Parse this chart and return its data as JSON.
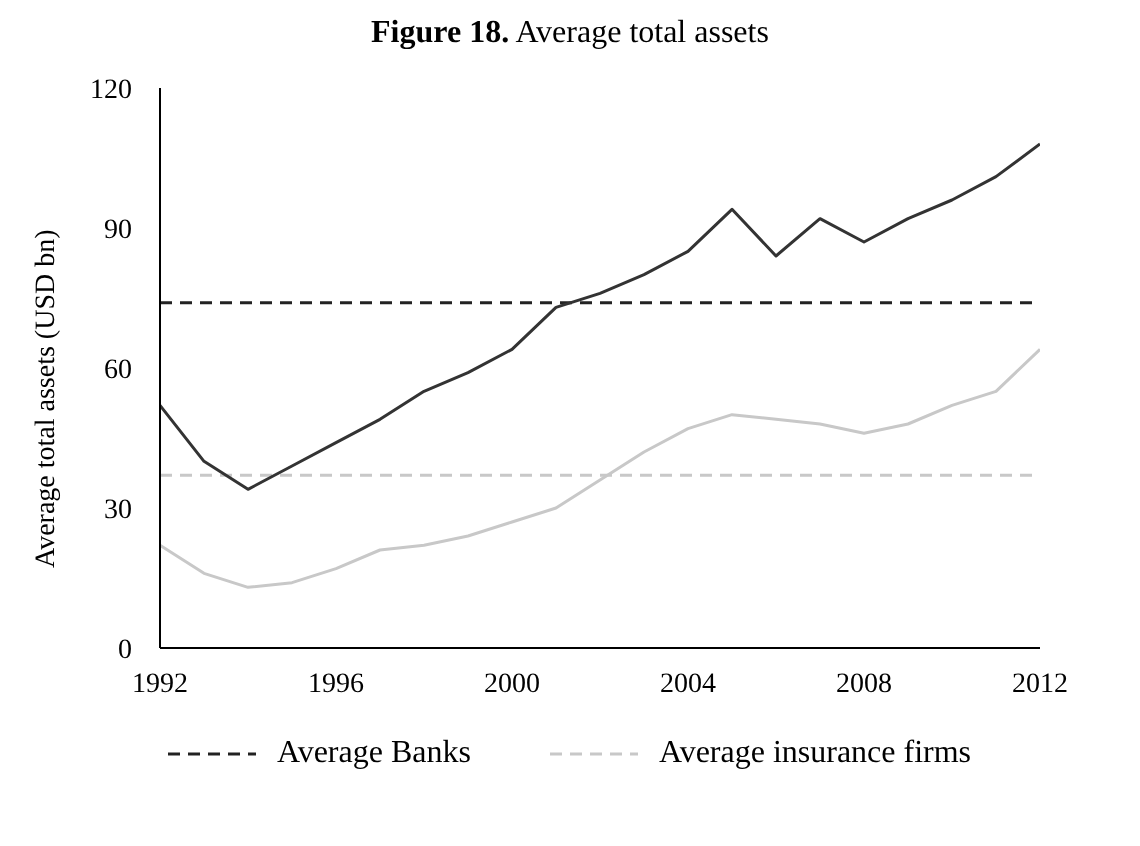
{
  "chart_data": {
    "type": "line",
    "title": "Figure 18. Average total assets",
    "ylabel": "Average total assets (USD bn)",
    "x": [
      1992,
      1993,
      1994,
      1995,
      1996,
      1997,
      1998,
      1999,
      2000,
      2001,
      2002,
      2003,
      2004,
      2005,
      2006,
      2007,
      2008,
      2009,
      2010,
      2011,
      2012
    ],
    "series": [
      {
        "color": "#333333",
        "values": [
          52,
          40,
          34,
          39,
          44,
          49,
          55,
          59,
          64,
          73,
          76,
          80,
          85,
          94,
          84,
          92,
          87,
          92,
          96,
          101,
          108
        ]
      },
      {
        "color": "#c8c8c8",
        "values": [
          22,
          16,
          13,
          14,
          17,
          21,
          22,
          24,
          27,
          30,
          36,
          42,
          47,
          50,
          49,
          48,
          46,
          48,
          52,
          55,
          64
        ]
      }
    ],
    "xlim": [
      1992,
      2012
    ],
    "xticks": [
      1992,
      1996,
      2000,
      2004,
      2008,
      2012
    ],
    "ylim": [
      0,
      120
    ],
    "yticks": [
      0,
      30,
      60,
      90,
      120
    ],
    "ref_lines": [
      {
        "axis": "y",
        "value": 74,
        "label": "Average Banks",
        "color": "#222222",
        "line_style": "dashed"
      },
      {
        "axis": "y",
        "value": 37,
        "label": "Average insurance firms",
        "color": "#c8c8c8",
        "line_style": "dashed"
      }
    ],
    "grid": false,
    "legend": "bottom",
    "marker": "none",
    "line_style": "solid"
  }
}
